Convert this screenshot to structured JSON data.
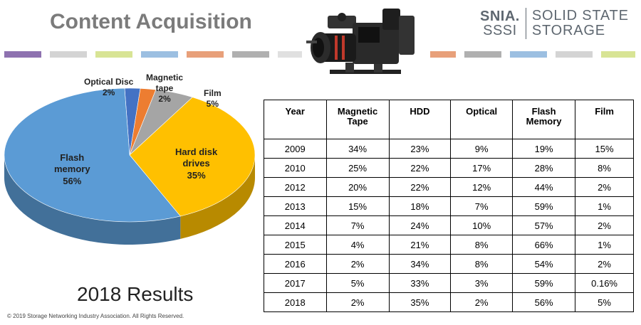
{
  "header": {
    "title": "Content Acquisition",
    "logo": {
      "brand": "SNIA.",
      "sub": "SSSI",
      "right_line1": "SOLID STATE",
      "right_line2": "STORAGE"
    }
  },
  "decor": {
    "camera_icon": "cinema-camera-icon",
    "stripe_colors": [
      "#8e72b0",
      "#d4d4d4",
      "#d8e495",
      "#9cbfe1",
      "#e8a07a",
      "#b0b0b0",
      "#e0e0e0",
      "#e8a07a",
      "#b0b0b0",
      "#9cbfe1",
      "#d4d4d4",
      "#d8e495"
    ]
  },
  "chart_data": [
    {
      "type": "pie",
      "title": "",
      "slices": [
        {
          "name": "Optical Disc",
          "value": 2,
          "label": "2%",
          "color": "#4472c4"
        },
        {
          "name": "Magnetic tape",
          "value": 2,
          "label": "2%",
          "color": "#ed7d31"
        },
        {
          "name": "Film",
          "value": 5,
          "label": "5%",
          "color": "#a5a5a5"
        },
        {
          "name": "Hard disk drives",
          "value": 35,
          "label": "35%",
          "color": "#ffc000"
        },
        {
          "name": "Flash memory",
          "value": 56,
          "label": "56%",
          "color": "#5b9bd5"
        }
      ]
    },
    {
      "type": "table",
      "columns": [
        "Year",
        "Magnetic Tape",
        "HDD",
        "Optical",
        "Flash Memory",
        "Film"
      ],
      "rows": [
        [
          "2009",
          "34%",
          "23%",
          "9%",
          "19%",
          "15%"
        ],
        [
          "2010",
          "25%",
          "22%",
          "17%",
          "28%",
          "8%"
        ],
        [
          "2012",
          "20%",
          "22%",
          "12%",
          "44%",
          "2%"
        ],
        [
          "2013",
          "15%",
          "18%",
          "7%",
          "59%",
          "1%"
        ],
        [
          "2014",
          "7%",
          "24%",
          "10%",
          "57%",
          "2%"
        ],
        [
          "2015",
          "4%",
          "21%",
          "8%",
          "66%",
          "1%"
        ],
        [
          "2016",
          "2%",
          "34%",
          "8%",
          "54%",
          "2%"
        ],
        [
          "2017",
          "5%",
          "33%",
          "3%",
          "59%",
          "0.16%"
        ],
        [
          "2018",
          "2%",
          "35%",
          "2%",
          "56%",
          "5%"
        ]
      ]
    }
  ],
  "pie_labels": {
    "optical": [
      "Optical Disc",
      "2%"
    ],
    "tape": [
      "Magnetic",
      "tape",
      "2%"
    ],
    "film": [
      "Film",
      "5%"
    ],
    "hdd": [
      "Hard disk",
      "drives",
      "35%"
    ],
    "flash": [
      "Flash",
      "memory",
      "56%"
    ]
  },
  "footer": {
    "results": "2018 Results",
    "copyright": "© 2019 Storage Networking Industry Association. All Rights Reserved."
  }
}
